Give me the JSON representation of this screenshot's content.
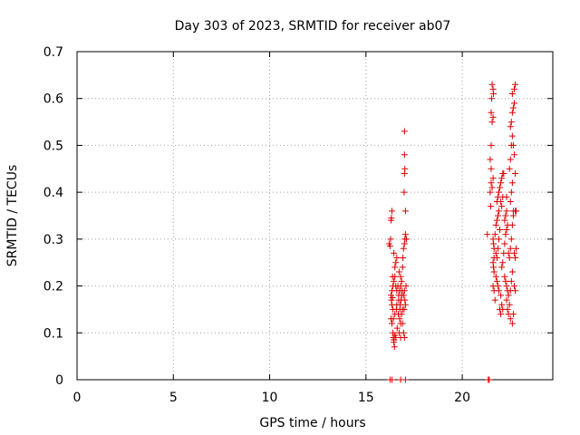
{
  "chart_data": {
    "type": "scatter",
    "title": "Day 303 of 2023, SRMTID for receiver ab07",
    "xlabel": "GPS time / hours",
    "ylabel": "SRMTID / TECUs",
    "xlim": [
      0,
      24.7
    ],
    "ylim": [
      0,
      0.7
    ],
    "x_ticks": [
      0,
      5,
      10,
      15,
      20
    ],
    "y_ticks": [
      0,
      0.1,
      0.2,
      0.3,
      0.4,
      0.5,
      0.6,
      0.7
    ],
    "x_tick_labels": [
      "0",
      "5",
      "10",
      "15",
      "20"
    ],
    "y_tick_labels": [
      "0",
      "0.1",
      "0.2",
      "0.3",
      "0.4",
      "0.5",
      "0.6",
      "0.7"
    ],
    "grid": true,
    "series": [
      {
        "name": "SRMTID",
        "marker": "+",
        "color": "#dd0000",
        "points": [
          [
            16.25,
            0.0
          ],
          [
            16.35,
            0.0
          ],
          [
            16.8,
            0.0
          ],
          [
            17.05,
            0.0
          ],
          [
            21.35,
            0.0
          ],
          [
            21.4,
            0.0
          ],
          [
            16.2,
            0.29
          ],
          [
            16.25,
            0.285
          ],
          [
            16.3,
            0.34
          ],
          [
            16.32,
            0.345
          ],
          [
            16.35,
            0.36
          ],
          [
            16.28,
            0.3
          ],
          [
            16.3,
            0.18
          ],
          [
            16.32,
            0.17
          ],
          [
            16.35,
            0.16
          ],
          [
            16.38,
            0.175
          ],
          [
            16.4,
            0.15
          ],
          [
            16.3,
            0.13
          ],
          [
            16.35,
            0.12
          ],
          [
            16.4,
            0.1
          ],
          [
            16.42,
            0.09
          ],
          [
            16.45,
            0.085
          ],
          [
            16.5,
            0.095
          ],
          [
            16.55,
            0.09
          ],
          [
            16.45,
            0.08
          ],
          [
            16.48,
            0.07
          ],
          [
            16.35,
            0.19
          ],
          [
            16.4,
            0.2
          ],
          [
            16.45,
            0.21
          ],
          [
            16.5,
            0.22
          ],
          [
            16.55,
            0.2
          ],
          [
            16.6,
            0.19
          ],
          [
            16.5,
            0.24
          ],
          [
            16.55,
            0.25
          ],
          [
            16.6,
            0.26
          ],
          [
            16.42,
            0.13
          ],
          [
            16.5,
            0.14
          ],
          [
            16.58,
            0.15
          ],
          [
            16.62,
            0.11
          ],
          [
            16.6,
            0.16
          ],
          [
            16.45,
            0.27
          ],
          [
            16.38,
            0.22
          ],
          [
            16.7,
            0.18
          ],
          [
            16.75,
            0.19
          ],
          [
            16.8,
            0.2
          ],
          [
            16.85,
            0.21
          ],
          [
            16.7,
            0.17
          ],
          [
            16.78,
            0.16
          ],
          [
            16.72,
            0.23
          ],
          [
            16.8,
            0.22
          ],
          [
            16.75,
            0.13
          ],
          [
            16.8,
            0.12
          ],
          [
            16.85,
            0.14
          ],
          [
            16.9,
            0.15
          ],
          [
            16.72,
            0.1
          ],
          [
            16.8,
            0.09
          ],
          [
            16.68,
            0.14
          ],
          [
            16.76,
            0.15
          ],
          [
            16.82,
            0.17
          ],
          [
            16.66,
            0.2
          ],
          [
            16.9,
            0.24
          ],
          [
            16.95,
            0.28
          ],
          [
            16.92,
            0.26
          ],
          [
            17.0,
            0.29
          ],
          [
            17.02,
            0.3
          ],
          [
            17.05,
            0.31
          ],
          [
            16.95,
            0.18
          ],
          [
            17.0,
            0.19
          ],
          [
            17.02,
            0.17
          ],
          [
            16.98,
            0.15
          ],
          [
            17.05,
            0.16
          ],
          [
            16.9,
            0.12
          ],
          [
            16.95,
            0.1
          ],
          [
            17.0,
            0.09
          ],
          [
            17.05,
            0.36
          ],
          [
            16.98,
            0.4
          ],
          [
            17.0,
            0.44
          ],
          [
            17.02,
            0.45
          ],
          [
            17.0,
            0.48
          ],
          [
            17.0,
            0.53
          ],
          [
            17.1,
            0.3
          ],
          [
            17.08,
            0.2
          ],
          [
            16.88,
            0.19
          ],
          [
            16.85,
            0.18
          ],
          [
            21.3,
            0.31
          ],
          [
            21.45,
            0.4
          ],
          [
            21.5,
            0.45
          ],
          [
            21.5,
            0.5
          ],
          [
            21.55,
            0.55
          ],
          [
            21.52,
            0.6
          ],
          [
            21.55,
            0.63
          ],
          [
            21.6,
            0.62
          ],
          [
            21.62,
            0.61
          ],
          [
            21.5,
            0.57
          ],
          [
            21.6,
            0.56
          ],
          [
            21.45,
            0.47
          ],
          [
            21.5,
            0.42
          ],
          [
            21.55,
            0.41
          ],
          [
            21.6,
            0.43
          ],
          [
            21.48,
            0.37
          ],
          [
            21.6,
            0.3
          ],
          [
            21.62,
            0.29
          ],
          [
            21.65,
            0.28
          ],
          [
            21.6,
            0.25
          ],
          [
            21.62,
            0.24
          ],
          [
            21.65,
            0.23
          ],
          [
            21.6,
            0.2
          ],
          [
            21.65,
            0.19
          ],
          [
            21.7,
            0.17
          ],
          [
            21.65,
            0.26
          ],
          [
            21.7,
            0.31
          ],
          [
            21.75,
            0.33
          ],
          [
            21.8,
            0.34
          ],
          [
            21.85,
            0.35
          ],
          [
            21.9,
            0.36
          ],
          [
            21.8,
            0.38
          ],
          [
            21.85,
            0.39
          ],
          [
            21.9,
            0.4
          ],
          [
            21.95,
            0.41
          ],
          [
            22.0,
            0.42
          ],
          [
            22.05,
            0.43
          ],
          [
            22.1,
            0.44
          ],
          [
            22.15,
            0.44
          ],
          [
            22.0,
            0.38
          ],
          [
            22.05,
            0.37
          ],
          [
            22.1,
            0.39
          ],
          [
            21.75,
            0.27
          ],
          [
            21.8,
            0.26
          ],
          [
            21.85,
            0.28
          ],
          [
            21.9,
            0.3
          ],
          [
            21.95,
            0.32
          ],
          [
            21.75,
            0.22
          ],
          [
            21.8,
            0.21
          ],
          [
            21.85,
            0.2
          ],
          [
            21.9,
            0.19
          ],
          [
            22.0,
            0.18
          ],
          [
            21.95,
            0.15
          ],
          [
            22.0,
            0.14
          ],
          [
            22.05,
            0.16
          ],
          [
            22.1,
            0.15
          ],
          [
            22.05,
            0.24
          ],
          [
            22.1,
            0.25
          ],
          [
            22.15,
            0.27
          ],
          [
            22.2,
            0.29
          ],
          [
            22.25,
            0.31
          ],
          [
            22.3,
            0.32
          ],
          [
            22.2,
            0.34
          ],
          [
            22.25,
            0.35
          ],
          [
            22.3,
            0.36
          ],
          [
            22.2,
            0.22
          ],
          [
            22.25,
            0.21
          ],
          [
            22.3,
            0.2
          ],
          [
            22.35,
            0.19
          ],
          [
            22.4,
            0.18
          ],
          [
            22.3,
            0.17
          ],
          [
            22.35,
            0.15
          ],
          [
            22.4,
            0.14
          ],
          [
            22.5,
            0.13
          ],
          [
            22.45,
            0.16
          ],
          [
            22.5,
            0.19
          ],
          [
            22.55,
            0.21
          ],
          [
            22.6,
            0.23
          ],
          [
            22.45,
            0.26
          ],
          [
            22.5,
            0.28
          ],
          [
            22.55,
            0.3
          ],
          [
            22.6,
            0.33
          ],
          [
            22.65,
            0.35
          ],
          [
            22.5,
            0.38
          ],
          [
            22.55,
            0.4
          ],
          [
            22.6,
            0.42
          ],
          [
            22.45,
            0.45
          ],
          [
            22.5,
            0.47
          ],
          [
            22.55,
            0.5
          ],
          [
            22.6,
            0.52
          ],
          [
            22.5,
            0.54
          ],
          [
            22.55,
            0.55
          ],
          [
            22.6,
            0.57
          ],
          [
            22.65,
            0.58
          ],
          [
            22.7,
            0.59
          ],
          [
            22.6,
            0.61
          ],
          [
            22.7,
            0.62
          ],
          [
            22.75,
            0.63
          ],
          [
            22.65,
            0.5
          ],
          [
            22.7,
            0.48
          ],
          [
            22.75,
            0.44
          ],
          [
            22.65,
            0.36
          ],
          [
            22.75,
            0.36
          ],
          [
            22.8,
            0.36
          ],
          [
            22.7,
            0.27
          ],
          [
            22.75,
            0.26
          ],
          [
            22.8,
            0.28
          ],
          [
            22.7,
            0.2
          ],
          [
            22.75,
            0.19
          ],
          [
            22.6,
            0.12
          ],
          [
            22.65,
            0.14
          ],
          [
            22.4,
            0.27
          ],
          [
            22.35,
            0.33
          ],
          [
            22.3,
            0.39
          ]
        ]
      }
    ]
  }
}
